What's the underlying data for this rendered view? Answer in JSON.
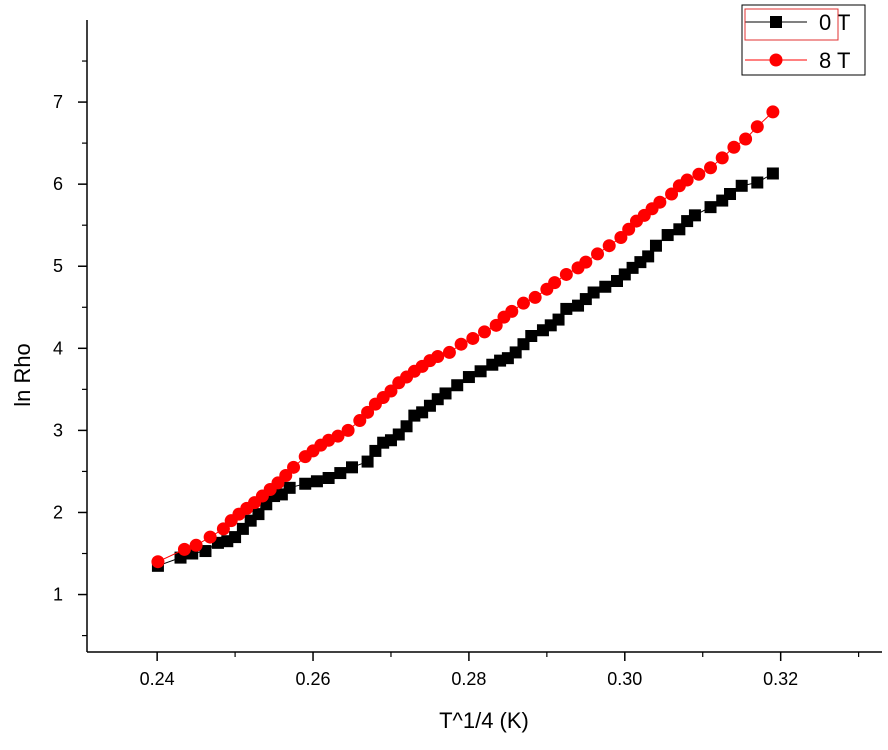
{
  "chart_data": {
    "type": "scatter",
    "title": "",
    "xlabel": "T^1/4 (K)",
    "ylabel": "ln Rho",
    "xlim": [
      0.231,
      0.333
    ],
    "ylim": [
      0.3,
      8.0
    ],
    "xticks": [
      "0.24",
      "0.26",
      "0.28",
      "0.30",
      "0.32"
    ],
    "yticks": [
      "1",
      "2",
      "3",
      "4",
      "5",
      "6",
      "7"
    ],
    "grid": false,
    "legend_position": "top-right",
    "series": [
      {
        "name": "0 T",
        "color": "#000000",
        "marker": "square",
        "x": [
          0.2401,
          0.243,
          0.2445,
          0.2462,
          0.2478,
          0.249,
          0.25,
          0.251,
          0.252,
          0.253,
          0.254,
          0.255,
          0.256,
          0.257,
          0.259,
          0.2605,
          0.262,
          0.2635,
          0.265,
          0.267,
          0.268,
          0.269,
          0.27,
          0.271,
          0.272,
          0.273,
          0.274,
          0.275,
          0.276,
          0.277,
          0.2785,
          0.28,
          0.2815,
          0.283,
          0.284,
          0.285,
          0.286,
          0.287,
          0.288,
          0.2895,
          0.2905,
          0.2915,
          0.2925,
          0.294,
          0.295,
          0.296,
          0.2975,
          0.299,
          0.3,
          0.301,
          0.302,
          0.303,
          0.304,
          0.3055,
          0.307,
          0.308,
          0.309,
          0.311,
          0.3125,
          0.3135,
          0.315,
          0.317,
          0.319
        ],
        "y": [
          1.35,
          1.45,
          1.5,
          1.53,
          1.63,
          1.65,
          1.7,
          1.8,
          1.9,
          1.98,
          2.1,
          2.2,
          2.22,
          2.3,
          2.35,
          2.38,
          2.42,
          2.48,
          2.55,
          2.62,
          2.75,
          2.85,
          2.88,
          2.95,
          3.05,
          3.18,
          3.22,
          3.3,
          3.38,
          3.45,
          3.55,
          3.65,
          3.72,
          3.8,
          3.85,
          3.88,
          3.95,
          4.05,
          4.15,
          4.22,
          4.28,
          4.35,
          4.48,
          4.52,
          4.6,
          4.68,
          4.75,
          4.82,
          4.9,
          4.98,
          5.05,
          5.12,
          5.25,
          5.38,
          5.45,
          5.55,
          5.62,
          5.72,
          5.8,
          5.88,
          5.98,
          6.02,
          6.13
        ]
      },
      {
        "name": "8 T",
        "color": "#ff0000",
        "marker": "circle",
        "x": [
          0.2401,
          0.2435,
          0.245,
          0.2468,
          0.2485,
          0.2495,
          0.2505,
          0.2515,
          0.2525,
          0.2535,
          0.2545,
          0.2555,
          0.2565,
          0.2575,
          0.259,
          0.26,
          0.261,
          0.262,
          0.2632,
          0.2645,
          0.266,
          0.267,
          0.268,
          0.269,
          0.27,
          0.271,
          0.272,
          0.273,
          0.274,
          0.275,
          0.276,
          0.2775,
          0.279,
          0.2805,
          0.282,
          0.2835,
          0.2845,
          0.2855,
          0.287,
          0.2885,
          0.29,
          0.291,
          0.2925,
          0.294,
          0.295,
          0.2965,
          0.298,
          0.2995,
          0.3005,
          0.3015,
          0.3025,
          0.3035,
          0.3045,
          0.306,
          0.307,
          0.308,
          0.3095,
          0.311,
          0.3125,
          0.314,
          0.3155,
          0.317,
          0.319
        ],
        "y": [
          1.4,
          1.55,
          1.6,
          1.7,
          1.8,
          1.9,
          1.98,
          2.05,
          2.12,
          2.2,
          2.28,
          2.36,
          2.45,
          2.55,
          2.68,
          2.75,
          2.82,
          2.88,
          2.93,
          3.0,
          3.12,
          3.22,
          3.32,
          3.4,
          3.48,
          3.58,
          3.65,
          3.72,
          3.78,
          3.85,
          3.9,
          3.95,
          4.05,
          4.12,
          4.2,
          4.28,
          4.38,
          4.45,
          4.55,
          4.62,
          4.72,
          4.8,
          4.9,
          4.98,
          5.05,
          5.15,
          5.25,
          5.35,
          5.45,
          5.55,
          5.62,
          5.7,
          5.78,
          5.88,
          5.98,
          6.05,
          6.12,
          6.2,
          6.32,
          6.45,
          6.55,
          6.7,
          6.88
        ]
      }
    ]
  }
}
